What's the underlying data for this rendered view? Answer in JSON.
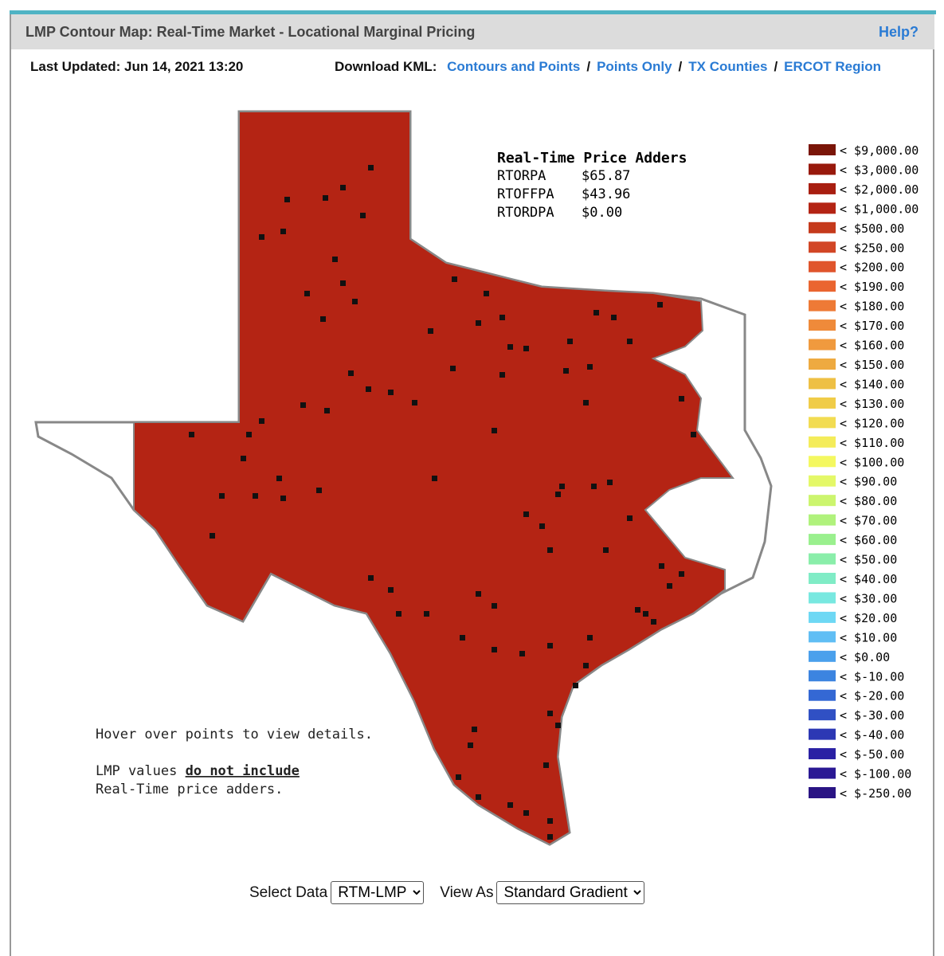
{
  "header": {
    "title": "LMP Contour Map: Real-Time Market - Locational Marginal Pricing",
    "help": "Help?"
  },
  "toolbar": {
    "last_updated": "Last Updated: Jun 14, 2021 13:20",
    "download_label": "Download KML:",
    "separator": "/",
    "links": [
      "Contours and Points",
      "Points Only",
      "TX Counties",
      "ERCOT Region"
    ]
  },
  "adders": {
    "title": "Real-Time Price Adders",
    "rows": [
      [
        "RTORPA",
        "$65.87"
      ],
      [
        "RTOFFPA",
        "$43.96"
      ],
      [
        "RTORDPA",
        "$0.00"
      ]
    ]
  },
  "legend": [
    {
      "label": "< $9,000.00",
      "color": "#7a1508"
    },
    {
      "label": "< $3,000.00",
      "color": "#98190c"
    },
    {
      "label": "< $2,000.00",
      "color": "#a81e10"
    },
    {
      "label": "< $1,000.00",
      "color": "#b42414"
    },
    {
      "label": "< $500.00",
      "color": "#c53a1c"
    },
    {
      "label": "< $250.00",
      "color": "#d24626"
    },
    {
      "label": "< $200.00",
      "color": "#e0552c"
    },
    {
      "label": "< $190.00",
      "color": "#ea6530"
    },
    {
      "label": "< $180.00",
      "color": "#ee7a36"
    },
    {
      "label": "< $170.00",
      "color": "#ef8a3a"
    },
    {
      "label": "< $160.00",
      "color": "#f09a3e"
    },
    {
      "label": "< $150.00",
      "color": "#eeaa40"
    },
    {
      "label": "< $140.00",
      "color": "#eec044"
    },
    {
      "label": "< $130.00",
      "color": "#f0cc48"
    },
    {
      "label": "< $120.00",
      "color": "#f2dc52"
    },
    {
      "label": "< $110.00",
      "color": "#f4ec5a"
    },
    {
      "label": "< $100.00",
      "color": "#f4f860"
    },
    {
      "label": "< $90.00",
      "color": "#e4f868"
    },
    {
      "label": "< $80.00",
      "color": "#ccf56e"
    },
    {
      "label": "< $70.00",
      "color": "#b0f27c"
    },
    {
      "label": "< $60.00",
      "color": "#9af08e"
    },
    {
      "label": "< $50.00",
      "color": "#8aeeaa"
    },
    {
      "label": "< $40.00",
      "color": "#80ecc6"
    },
    {
      "label": "< $30.00",
      "color": "#78e8e0"
    },
    {
      "label": "< $20.00",
      "color": "#6ed8f4"
    },
    {
      "label": "< $10.00",
      "color": "#60bef4"
    },
    {
      "label": "< $0.00",
      "color": "#4aa0ec"
    },
    {
      "label": "< $-10.00",
      "color": "#3c84e0"
    },
    {
      "label": "< $-20.00",
      "color": "#3468d4"
    },
    {
      "label": "< $-30.00",
      "color": "#3050c4"
    },
    {
      "label": "< $-40.00",
      "color": "#2c38b4"
    },
    {
      "label": "< $-50.00",
      "color": "#2a20a4"
    },
    {
      "label": "< $-100.00",
      "color": "#2a1894"
    },
    {
      "label": "< $-250.00",
      "color": "#2a1484"
    }
  ],
  "notes": {
    "hover": "Hover over points to view details.",
    "lmp_prefix": "LMP values",
    "lmp_emph": "do not include",
    "lmp_suffix": "Real-Time price adders."
  },
  "controls": {
    "select_label": "Select Data",
    "select_value": "RTM-LMP",
    "view_label": "View As",
    "view_value": "Standard Gradient"
  }
}
